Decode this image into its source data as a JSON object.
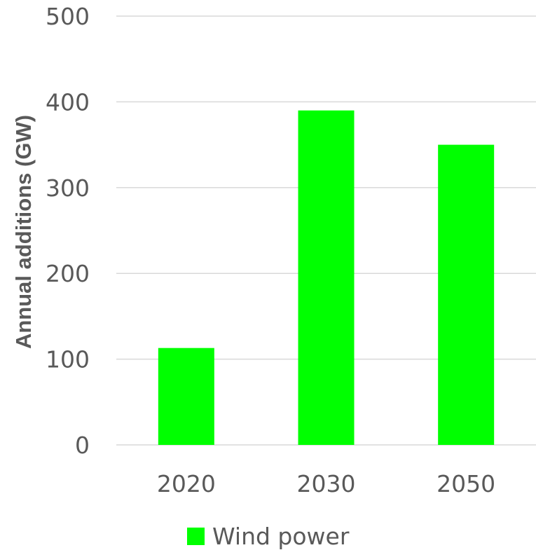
{
  "chart_data": {
    "type": "bar",
    "categories": [
      "2020",
      "2030",
      "2050"
    ],
    "series": [
      {
        "name": "Wind power",
        "values": [
          113,
          390,
          350
        ],
        "color": "#00ff00"
      }
    ],
    "ylabel": "Annual additions (GW)",
    "xlabel": "",
    "ylim": [
      0,
      500
    ],
    "yticks": [
      0,
      100,
      200,
      300,
      400,
      500
    ],
    "grid": true,
    "legend_position": "bottom"
  }
}
